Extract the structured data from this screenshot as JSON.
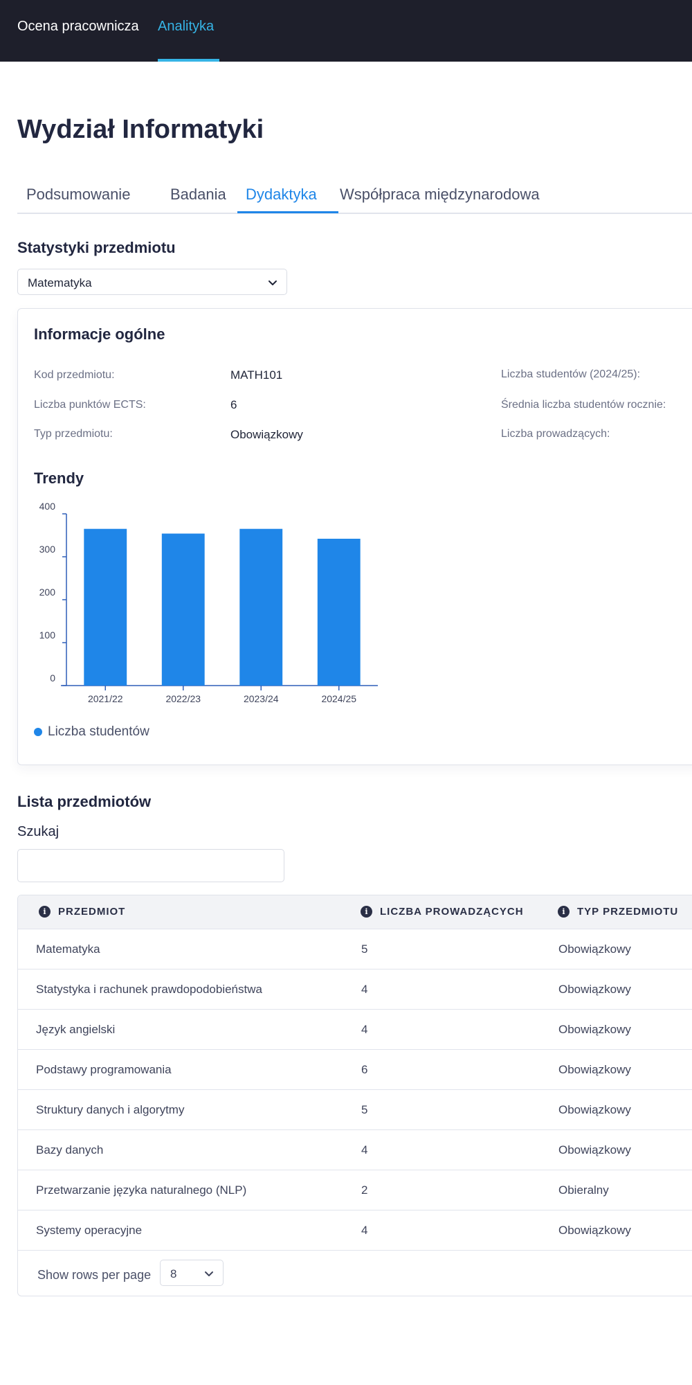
{
  "nav": {
    "brand": "Ocena pracownicza",
    "active_link": "Analityka"
  },
  "page": {
    "title": "Wydział Informatyki"
  },
  "tabs": [
    {
      "label": "Podsumowanie",
      "active": false
    },
    {
      "label": "Badania",
      "active": false
    },
    {
      "label": "Dydaktyka",
      "active": true
    },
    {
      "label": "Współpraca międzynarodowa",
      "active": false
    }
  ],
  "course_stats": {
    "title": "Statystyki przedmiotu",
    "selected_course": "Matematyka",
    "general_info": {
      "title": "Informacje ogólne",
      "course_code_label": "Kod przedmiotu:",
      "course_code": "MATH101",
      "ects_label": "Liczba punktów ECTS:",
      "ects": "6",
      "type_label": "Typ przedmiotu:",
      "type": "Obowiązkowy",
      "students_label": "Liczba studentów (2024/25):",
      "avg_students_label": "Średnia liczba studentów rocznie:",
      "teachers_label": "Liczba prowadzących:"
    },
    "trends_title": "Trendy"
  },
  "chart_data": {
    "type": "bar",
    "categories": [
      "2021/22",
      "2022/23",
      "2023/24",
      "2024/25"
    ],
    "series": [
      {
        "name": "Liczba studentów",
        "values": [
          365,
          354,
          365,
          342
        ],
        "color": "#1f86e8"
      }
    ],
    "yticks": [
      "0",
      "100",
      "200",
      "300",
      "400"
    ],
    "ylim": [
      0,
      400
    ],
    "legend": "bottom-left"
  },
  "course_list": {
    "title": "Lista przedmiotów",
    "search_label": "Szukaj",
    "search_value": "",
    "columns": [
      "PRZEDMIOT",
      "LICZBA PROWADZĄCYCH",
      "TYP PRZEDMIOTU"
    ],
    "rows": [
      [
        "Matematyka",
        "5",
        "Obowiązkowy"
      ],
      [
        "Statystyka i rachunek prawdopodobieństwa",
        "4",
        "Obowiązkowy"
      ],
      [
        "Język angielski",
        "4",
        "Obowiązkowy"
      ],
      [
        "Podstawy programowania",
        "6",
        "Obowiązkowy"
      ],
      [
        "Struktury danych i algorytmy",
        "5",
        "Obowiązkowy"
      ],
      [
        "Bazy danych",
        "4",
        "Obowiązkowy"
      ],
      [
        "Przetwarzanie języka naturalnego (NLP)",
        "2",
        "Obieralny"
      ],
      [
        "Systemy operacyjne",
        "4",
        "Obowiązkowy"
      ]
    ],
    "rows_per_page_label": "Show rows per page",
    "rows_per_page": "8"
  },
  "icons": {
    "select_chevron": "chevron-down-icon",
    "column_info": "info-icon"
  },
  "colors": {
    "accent": "#1f86e8",
    "nav_bg": "#1e1f2b",
    "nav_active": "#36b4e6"
  }
}
